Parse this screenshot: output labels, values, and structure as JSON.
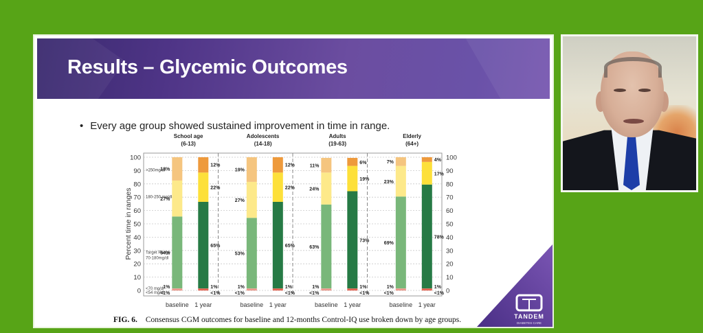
{
  "slide": {
    "title": "Results – Glycemic Outcomes",
    "bullet": "Every age group showed sustained improvement in time in range.",
    "bullet_marker": "•",
    "caption_label": "FIG. 6.",
    "caption_text": "Consensus CGM outcomes for baseline and 12-months Control-IQ use broken down by age groups.",
    "logo": {
      "name": "TANDEM",
      "sub": "DIABETES CARE"
    }
  },
  "webcam": {
    "description": "presenter video feed"
  },
  "chart_data": {
    "type": "bar",
    "stacked": true,
    "ylabel": "Percent time in ranges",
    "ylim": [
      0,
      100
    ],
    "yticks": [
      0,
      10,
      20,
      30,
      40,
      50,
      60,
      70,
      80,
      90,
      100
    ],
    "grid": true,
    "x_labels": [
      "baseline",
      "1 year"
    ],
    "groups": [
      {
        "name": "School age",
        "range": "(6-13)"
      },
      {
        "name": "Adolescents",
        "range": "(14-18)"
      },
      {
        "name": "Adults",
        "range": "(19-63)"
      },
      {
        "name": "Elderly",
        "range": "(64+)"
      }
    ],
    "range_labels": [
      {
        "label": ">250mg/dl",
        "at": 91
      },
      {
        "label": "180-250 mg/dl",
        "at": 71
      },
      {
        "label": "Target Range",
        "label2": "70-180mg/dl",
        "at": 29
      },
      {
        "label": "<70 mg/dl",
        "at": 2
      },
      {
        "label": "<54 mg/dl",
        "at": -1
      }
    ],
    "series_order": [
      "<54",
      "<70",
      "70-180",
      "180-250",
      ">250"
    ],
    "colors": {
      "baseline": {
        "<54": "#e07a6a",
        "<70": "#f0a59a",
        "70-180": "#79b77a",
        "180-250": "#fde98a",
        ">250": "#f5c57f"
      },
      "year1": {
        "<54": "#d8402d",
        "<70": "#e6705e",
        "70-180": "#267a45",
        "180-250": "#fde03a",
        ">250": "#ee9a3c"
      }
    },
    "bars": [
      {
        "group": 0,
        "period": "baseline",
        "values": {
          "<54": 0.5,
          "<70": 1,
          "70-180": 54,
          "180-250": 27,
          ">250": 18
        },
        "labels": {
          "<54": "<1%",
          "<70": "1%",
          "70-180": "54%",
          "180-250": "27%",
          ">250": "18%"
        }
      },
      {
        "group": 0,
        "period": "1 year",
        "values": {
          "<54": 0.5,
          "<70": 1,
          "70-180": 65,
          "180-250": 22,
          ">250": 12
        },
        "labels": {
          "<54": "<1%",
          "<70": "1%",
          "70-180": "65%",
          "180-250": "22%",
          ">250": "12%"
        }
      },
      {
        "group": 1,
        "period": "baseline",
        "values": {
          "<54": 0.5,
          "<70": 1,
          "70-180": 53,
          "180-250": 27,
          ">250": 19
        },
        "labels": {
          "<54": "<1%",
          "<70": "1%",
          "70-180": "53%",
          "180-250": "27%",
          ">250": "19%"
        }
      },
      {
        "group": 1,
        "period": "1 year",
        "values": {
          "<54": 0.5,
          "<70": 1,
          "70-180": 65,
          "180-250": 22,
          ">250": 12
        },
        "labels": {
          "<54": "<1%",
          "<70": "1%",
          "70-180": "65%",
          "180-250": "22%",
          ">250": "12%"
        }
      },
      {
        "group": 2,
        "period": "baseline",
        "values": {
          "<54": 0.5,
          "<70": 1,
          "70-180": 63,
          "180-250": 24,
          ">250": 11
        },
        "labels": {
          "<54": "<1%",
          "<70": "1%",
          "70-180": "63%",
          "180-250": "24%",
          ">250": "11%"
        }
      },
      {
        "group": 2,
        "period": "1 year",
        "values": {
          "<54": 0.5,
          "<70": 1,
          "70-180": 73,
          "180-250": 19,
          ">250": 6
        },
        "labels": {
          "<54": "<1%",
          "<70": "1%",
          "70-180": "73%",
          "180-250": "19%",
          ">250": "6%"
        }
      },
      {
        "group": 3,
        "period": "baseline",
        "values": {
          "<54": 0.5,
          "<70": 1,
          "70-180": 69,
          "180-250": 23,
          ">250": 7
        },
        "labels": {
          "<54": "<1%",
          "<70": "1%",
          "70-180": "69%",
          "180-250": "23%",
          ">250": "7%"
        }
      },
      {
        "group": 3,
        "period": "1 year",
        "values": {
          "<54": 0.5,
          "<70": 1,
          "70-180": 78,
          "180-250": 17,
          ">250": 4
        },
        "labels": {
          "<54": "<1%",
          "<70": "1%",
          "70-180": "78%",
          "180-250": "17%",
          ">250": "4%"
        }
      }
    ]
  }
}
